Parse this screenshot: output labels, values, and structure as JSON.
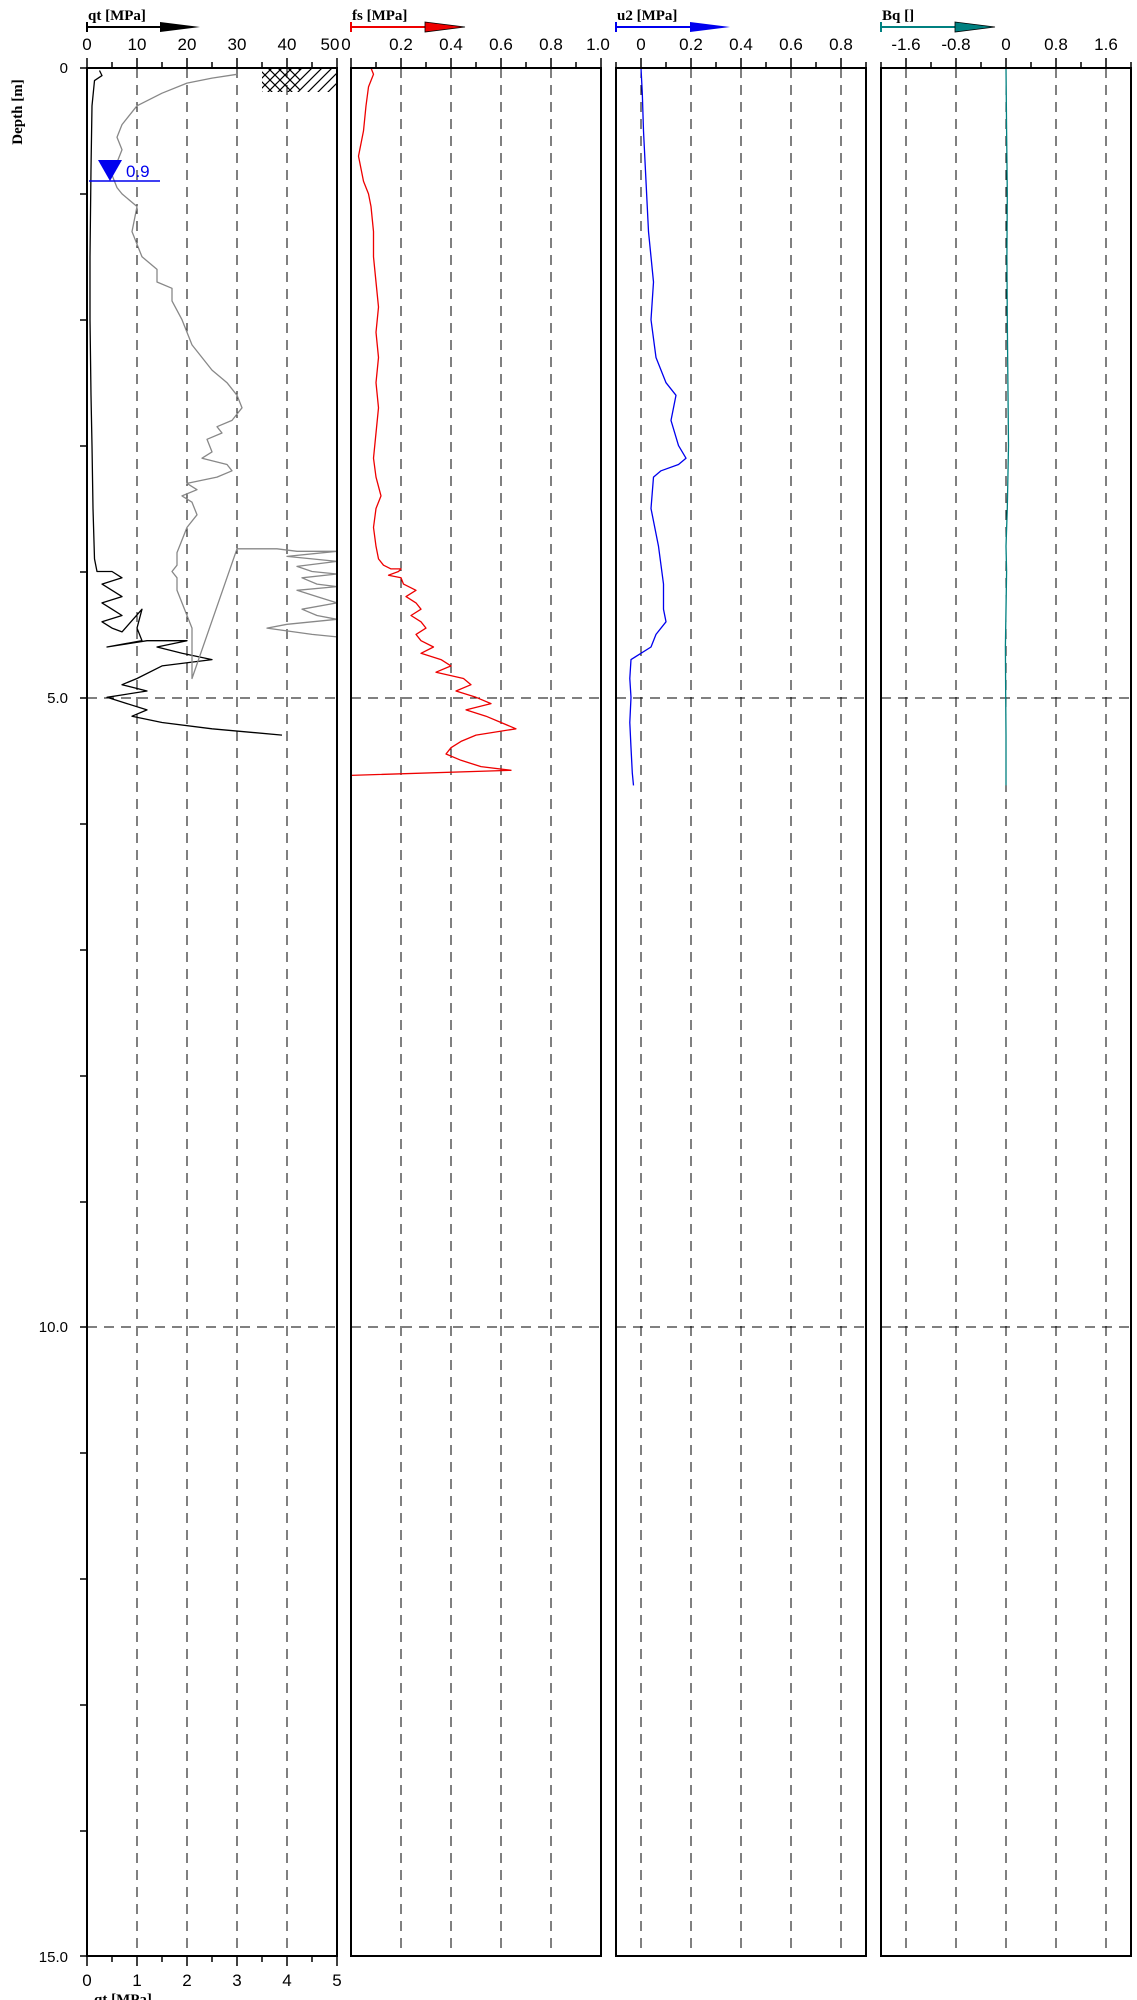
{
  "chart_data": [
    {
      "type": "line",
      "title": "qt [MPa]",
      "xlabel": "qt [MPa]",
      "ylabel": "Depth [m]",
      "xlim": [
        0,
        50
      ],
      "xticks": [
        "0",
        "10",
        "20",
        "30",
        "40",
        "50"
      ],
      "ylim": [
        0,
        15
      ],
      "yticks": [
        "0",
        "5.0",
        "10.0",
        "15.0"
      ],
      "y_inverted": true,
      "secondary_x": {
        "label": "qt [MPa]",
        "xlim": [
          0,
          5
        ],
        "xticks": [
          "0",
          "1",
          "2",
          "3",
          "4",
          "5"
        ]
      },
      "water_level": {
        "depth": 0.9,
        "label": "0.9",
        "color": "#0000ee"
      },
      "series": [
        {
          "color": "#000000",
          "points": [
            [
              2.5,
              0.02
            ],
            [
              3,
              0.06
            ],
            [
              1.5,
              0.1
            ],
            [
              1,
              0.3
            ],
            [
              0.8,
              0.8
            ],
            [
              0.6,
              1.5
            ],
            [
              0.6,
              2
            ],
            [
              0.8,
              2.6
            ],
            [
              1,
              3
            ],
            [
              1.2,
              3.5
            ],
            [
              1.5,
              3.9
            ],
            [
              2,
              4
            ],
            [
              5,
              4
            ],
            [
              7,
              4.05
            ],
            [
              3,
              4.1
            ],
            [
              5,
              4.15
            ],
            [
              7,
              4.2
            ],
            [
              3,
              4.25
            ],
            [
              5,
              4.3
            ],
            [
              7,
              4.35
            ],
            [
              3,
              4.4
            ],
            [
              5,
              4.45
            ],
            [
              7,
              4.48
            ],
            [
              11,
              4.3
            ],
            [
              10,
              4.45
            ],
            [
              11,
              4.55
            ],
            [
              4,
              4.6
            ],
            [
              12,
              4.55
            ],
            [
              20,
              4.55
            ],
            [
              14,
              4.6
            ],
            [
              19,
              4.65
            ],
            [
              25,
              4.7
            ],
            [
              15,
              4.75
            ],
            [
              10,
              4.85
            ],
            [
              7,
              4.9
            ],
            [
              12,
              4.95
            ],
            [
              4,
              5.0
            ],
            [
              8,
              5.05
            ],
            [
              12,
              5.1
            ],
            [
              9,
              5.15
            ],
            [
              15,
              5.2
            ],
            [
              25,
              5.25
            ],
            [
              39,
              5.3
            ]
          ]
        },
        {
          "color": "#888888",
          "points": [
            [
              30,
              0.05
            ],
            [
              25,
              0.08
            ],
            [
              20,
              0.12
            ],
            [
              15,
              0.2
            ],
            [
              10,
              0.3
            ],
            [
              7,
              0.45
            ],
            [
              6,
              0.55
            ],
            [
              7,
              0.65
            ],
            [
              6,
              0.75
            ],
            [
              5,
              0.85
            ],
            [
              6,
              0.95
            ],
            [
              7,
              1
            ],
            [
              10,
              1.1
            ],
            [
              9,
              1.3
            ],
            [
              11,
              1.5
            ],
            [
              14,
              1.6
            ],
            [
              14,
              1.7
            ],
            [
              17,
              1.75
            ],
            [
              17,
              1.85
            ],
            [
              19,
              2
            ],
            [
              21,
              2.2
            ],
            [
              23,
              2.3
            ],
            [
              25,
              2.4
            ],
            [
              28,
              2.5
            ],
            [
              30,
              2.6
            ],
            [
              31,
              2.7
            ],
            [
              29,
              2.8
            ],
            [
              26,
              2.85
            ],
            [
              27,
              2.9
            ],
            [
              24,
              2.95
            ],
            [
              25,
              3.05
            ],
            [
              23,
              3.1
            ],
            [
              28,
              3.15
            ],
            [
              29,
              3.2
            ],
            [
              26,
              3.25
            ],
            [
              20,
              3.3
            ],
            [
              22,
              3.35
            ],
            [
              19,
              3.4
            ],
            [
              21,
              3.45
            ],
            [
              22,
              3.55
            ],
            [
              20,
              3.65
            ],
            [
              19,
              3.75
            ],
            [
              18,
              3.85
            ],
            [
              18,
              3.95
            ],
            [
              17,
              4
            ],
            [
              18,
              4.05
            ],
            [
              18,
              4.15
            ],
            [
              19,
              4.25
            ],
            [
              20,
              4.35
            ],
            [
              21,
              4.45
            ],
            [
              21,
              4.55
            ],
            [
              21,
              4.65
            ],
            [
              21,
              4.75
            ],
            [
              21,
              4.85
            ],
            [
              30,
              3.82
            ],
            [
              38,
              3.82
            ],
            [
              42,
              3.84
            ],
            [
              50,
              3.84
            ],
            [
              40,
              3.88
            ],
            [
              45,
              3.9
            ],
            [
              50,
              3.92
            ],
            [
              42,
              3.96
            ],
            [
              45,
              4.0
            ],
            [
              50,
              4.02
            ],
            [
              43,
              4.05
            ],
            [
              46,
              4.1
            ],
            [
              50,
              4.12
            ],
            [
              42,
              4.15
            ],
            [
              46,
              4.2
            ],
            [
              50,
              4.25
            ],
            [
              43,
              4.3
            ],
            [
              46,
              4.35
            ],
            [
              50,
              4.38
            ],
            [
              40,
              4.42
            ],
            [
              36,
              4.45
            ],
            [
              45,
              4.5
            ],
            [
              50,
              4.52
            ],
            [
              50,
              4.6
            ],
            [
              50,
              4.8
            ],
            [
              50,
              5.0
            ],
            [
              50,
              5.2
            ],
            [
              50,
              5.35
            ]
          ]
        }
      ]
    },
    {
      "type": "line",
      "title": "fs [MPa]",
      "xlim": [
        0,
        1
      ],
      "xticks": [
        "0",
        "0.2",
        "0.4",
        "0.6",
        "0.8",
        "1.0"
      ],
      "series": [
        {
          "color": "#ee0000",
          "points": [
            [
              0.08,
              0
            ],
            [
              0.09,
              0.05
            ],
            [
              0.07,
              0.15
            ],
            [
              0.06,
              0.3
            ],
            [
              0.05,
              0.5
            ],
            [
              0.03,
              0.7
            ],
            [
              0.05,
              0.9
            ],
            [
              0.07,
              1.0
            ],
            [
              0.08,
              1.1
            ],
            [
              0.09,
              1.3
            ],
            [
              0.09,
              1.5
            ],
            [
              0.1,
              1.7
            ],
            [
              0.11,
              1.9
            ],
            [
              0.1,
              2.1
            ],
            [
              0.11,
              2.3
            ],
            [
              0.1,
              2.5
            ],
            [
              0.11,
              2.7
            ],
            [
              0.1,
              2.9
            ],
            [
              0.09,
              3.1
            ],
            [
              0.1,
              3.25
            ],
            [
              0.12,
              3.4
            ],
            [
              0.1,
              3.5
            ],
            [
              0.09,
              3.65
            ],
            [
              0.1,
              3.8
            ],
            [
              0.11,
              3.9
            ],
            [
              0.13,
              3.95
            ],
            [
              0.16,
              3.98
            ],
            [
              0.2,
              3.98
            ],
            [
              0.19,
              4.0
            ],
            [
              0.15,
              4.03
            ],
            [
              0.2,
              4.05
            ],
            [
              0.21,
              4.1
            ],
            [
              0.26,
              4.15
            ],
            [
              0.22,
              4.2
            ],
            [
              0.26,
              4.25
            ],
            [
              0.28,
              4.3
            ],
            [
              0.24,
              4.35
            ],
            [
              0.28,
              4.4
            ],
            [
              0.3,
              4.45
            ],
            [
              0.26,
              4.5
            ],
            [
              0.28,
              4.55
            ],
            [
              0.33,
              4.6
            ],
            [
              0.28,
              4.65
            ],
            [
              0.36,
              4.7
            ],
            [
              0.4,
              4.75
            ],
            [
              0.34,
              4.8
            ],
            [
              0.45,
              4.85
            ],
            [
              0.48,
              4.9
            ],
            [
              0.42,
              4.95
            ],
            [
              0.5,
              5.0
            ],
            [
              0.56,
              5.05
            ],
            [
              0.46,
              5.1
            ],
            [
              0.54,
              5.15
            ],
            [
              0.6,
              5.2
            ],
            [
              0.66,
              5.25
            ],
            [
              0.5,
              5.3
            ],
            [
              0.44,
              5.35
            ],
            [
              0.4,
              5.4
            ],
            [
              0.38,
              5.45
            ],
            [
              0.44,
              5.5
            ],
            [
              0.52,
              5.55
            ],
            [
              0.64,
              5.58
            ],
            [
              0.0,
              5.62
            ],
            [
              0.0,
              5.65
            ]
          ]
        }
      ]
    },
    {
      "type": "line",
      "title": "u2 [MPa]",
      "xlim": [
        -0.1,
        0.9
      ],
      "xticks": [
        "0",
        "0.2",
        "0.4",
        "0.6",
        "0.8"
      ],
      "series": [
        {
          "color": "#0000ee",
          "points": [
            [
              0,
              0
            ],
            [
              0.005,
              0.2
            ],
            [
              0.01,
              0.5
            ],
            [
              0.02,
              0.9
            ],
            [
              0.03,
              1.3
            ],
            [
              0.05,
              1.7
            ],
            [
              0.04,
              2.0
            ],
            [
              0.06,
              2.3
            ],
            [
              0.1,
              2.5
            ],
            [
              0.14,
              2.6
            ],
            [
              0.12,
              2.8
            ],
            [
              0.15,
              3.0
            ],
            [
              0.18,
              3.1
            ],
            [
              0.15,
              3.15
            ],
            [
              0.08,
              3.2
            ],
            [
              0.05,
              3.25
            ],
            [
              0.04,
              3.5
            ],
            [
              0.07,
              3.8
            ],
            [
              0.09,
              4.1
            ],
            [
              0.09,
              4.3
            ],
            [
              0.1,
              4.4
            ],
            [
              0.06,
              4.5
            ],
            [
              0.04,
              4.6
            ],
            [
              -0.04,
              4.7
            ],
            [
              -0.045,
              4.85
            ],
            [
              -0.04,
              5.0
            ],
            [
              -0.045,
              5.2
            ],
            [
              -0.04,
              5.4
            ],
            [
              -0.035,
              5.6
            ],
            [
              -0.03,
              5.7
            ]
          ]
        }
      ]
    },
    {
      "type": "line",
      "title": "Bq []",
      "xlim": [
        -2.0,
        2.0
      ],
      "xticks": [
        "-1.6",
        "-0.8",
        "0",
        "0.8",
        "1.6"
      ],
      "series": [
        {
          "color": "#008080",
          "points": [
            [
              0,
              0
            ],
            [
              0.01,
              0.5
            ],
            [
              0.02,
              1.0
            ],
            [
              0.015,
              1.5
            ],
            [
              0.02,
              2.0
            ],
            [
              0.03,
              2.5
            ],
            [
              0.04,
              3.0
            ],
            [
              0.02,
              3.5
            ],
            [
              0.0,
              3.8
            ],
            [
              0.01,
              4.0
            ],
            [
              0.0,
              4.3
            ],
            [
              -0.01,
              4.6
            ],
            [
              -0.005,
              5.0
            ],
            [
              0.0,
              5.3
            ],
            [
              0.0,
              5.7
            ]
          ]
        }
      ]
    }
  ]
}
